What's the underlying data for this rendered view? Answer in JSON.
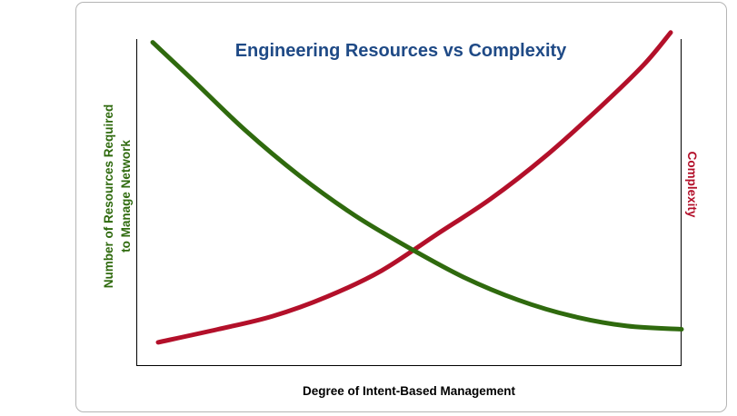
{
  "chart_data": {
    "type": "line",
    "title": "Engineering Resources vs Complexity",
    "xlabel": "Degree of Intent-Based Management",
    "ylabel_left_lines": [
      "Number of Resources Required",
      "to Manage Network"
    ],
    "ylabel_right": "Complexity",
    "xlim": [
      0,
      1
    ],
    "ylim": [
      0,
      1
    ],
    "grid": false,
    "series": [
      {
        "name": "Number of Resources Required to Manage Network",
        "color": "#2f6a0e",
        "axis": "left",
        "x": [
          0.03,
          0.1,
          0.2,
          0.3,
          0.4,
          0.5,
          0.6,
          0.7,
          0.8,
          0.9,
          1.0
        ],
        "y": [
          0.99,
          0.88,
          0.72,
          0.58,
          0.46,
          0.36,
          0.27,
          0.2,
          0.15,
          0.12,
          0.11
        ]
      },
      {
        "name": "Complexity",
        "color": "#b3102a",
        "axis": "right",
        "x": [
          0.04,
          0.15,
          0.25,
          0.35,
          0.45,
          0.55,
          0.65,
          0.75,
          0.85,
          0.93,
          0.98
        ],
        "y": [
          0.07,
          0.11,
          0.15,
          0.21,
          0.29,
          0.4,
          0.51,
          0.64,
          0.79,
          0.92,
          1.02
        ]
      }
    ]
  },
  "colors": {
    "title": "#1f4a86",
    "left_label": "#2f6a0e",
    "right_label": "#b3102a",
    "x_label": "#000000",
    "axes": "#000000",
    "frame": "#b5b5b5"
  }
}
